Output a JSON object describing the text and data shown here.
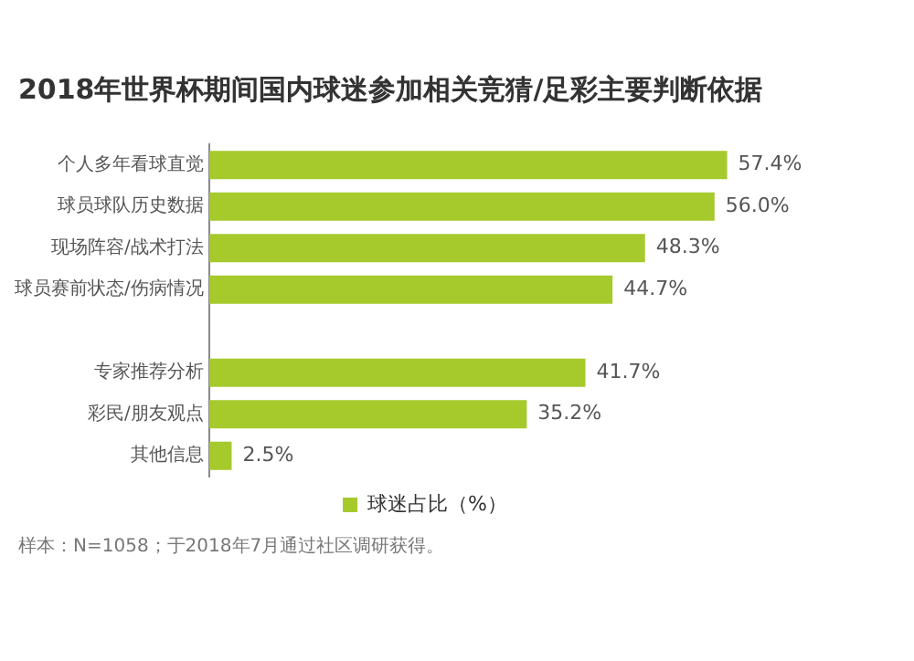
{
  "chart_data": {
    "type": "bar",
    "orientation": "horizontal",
    "title": "2018年世界杯期间国内球迷参加相关竞猜/足彩主要判断依据",
    "categories": [
      "个人多年看球直觉",
      "球员球队历史数据",
      "现场阵容/战术打法",
      "球员赛前状态/伤病情况",
      null,
      "专家推荐分析",
      "彩民/朋友观点",
      "其他信息"
    ],
    "series": [
      {
        "name": "球迷占比（%）",
        "color": "#a6c92c",
        "values": [
          57.4,
          56.0,
          48.3,
          44.7,
          null,
          41.7,
          35.2,
          2.5
        ],
        "value_labels": [
          "57.4%",
          "56.0%",
          "48.3%",
          "44.7%",
          null,
          "41.7%",
          "35.2%",
          "2.5%"
        ]
      }
    ],
    "legend": "bottom",
    "tick_labels": "y",
    "annotations": [
      "样本：N=1058；于2018年7月通过社区调研获得。"
    ]
  }
}
